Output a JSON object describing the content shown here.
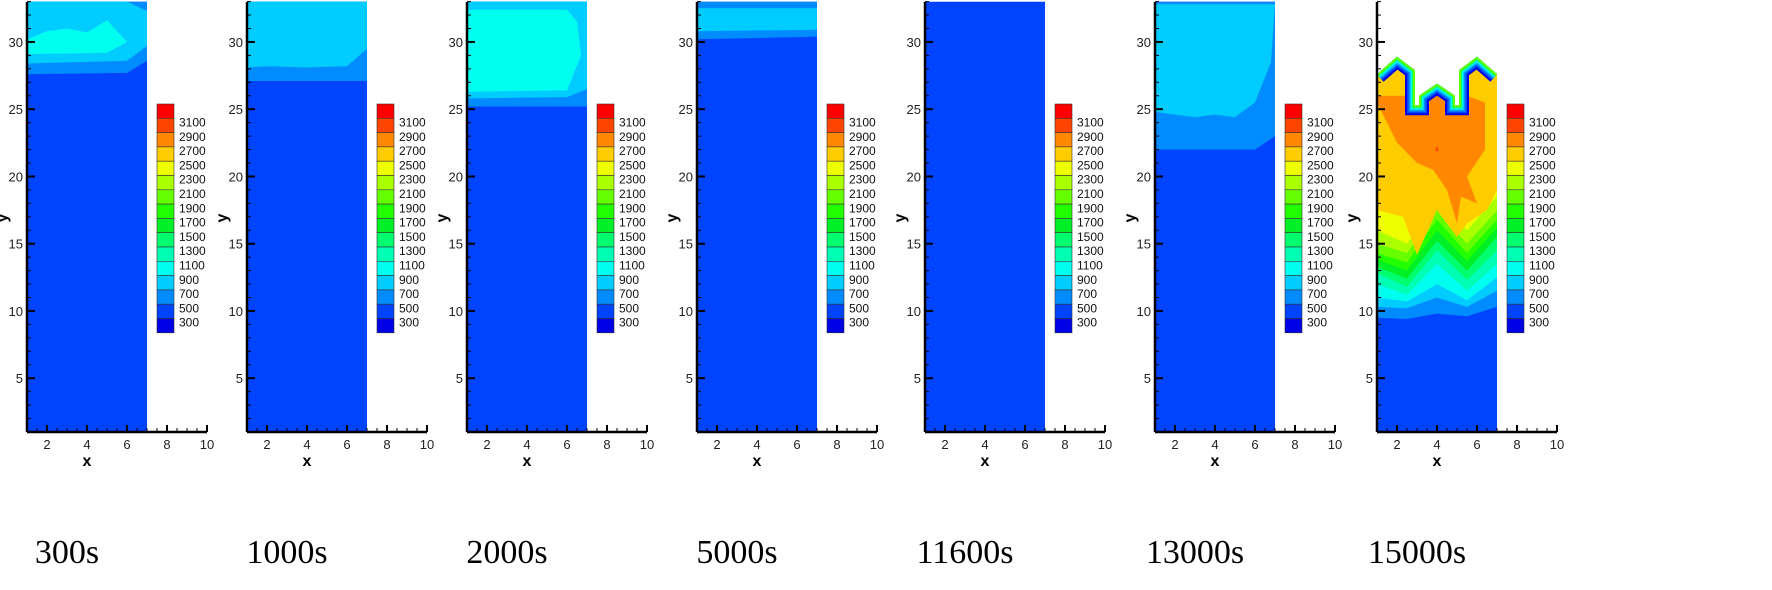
{
  "colorbar": {
    "levels": [
      300,
      500,
      700,
      900,
      1100,
      1300,
      1500,
      1700,
      1900,
      2100,
      2300,
      2500,
      2700,
      2900,
      3100
    ],
    "colors": [
      "#0000e6",
      "#0044ff",
      "#008cff",
      "#00ccff",
      "#00ffee",
      "#00ffb4",
      "#00ff6e",
      "#00f028",
      "#22ff00",
      "#66ff00",
      "#aaff00",
      "#eeff00",
      "#ffcc00",
      "#ff8800",
      "#ff4400",
      "#ff0000"
    ]
  },
  "chart_data": [
    {
      "type": "contour",
      "title": "300s",
      "xlabel": "x",
      "ylabel": "y",
      "xlim": [
        1,
        10
      ],
      "ylim": [
        1,
        33
      ],
      "xticks": [
        2,
        4,
        6,
        8,
        10
      ],
      "yticks": [
        5,
        10,
        15,
        20,
        25,
        30
      ],
      "domain": [
        [
          1,
          1
        ],
        [
          7,
          1
        ],
        [
          7,
          33
        ],
        [
          1,
          33
        ]
      ],
      "base_level": 500,
      "regions": [
        {
          "level": 700,
          "polygon": [
            [
              1,
              27.6
            ],
            [
              6,
              27.7
            ],
            [
              7,
              28.6
            ],
            [
              7,
              33
            ],
            [
              1,
              33
            ]
          ]
        },
        {
          "level": 900,
          "polygon": [
            [
              1,
              28.4
            ],
            [
              6,
              28.6
            ],
            [
              7,
              29.7
            ],
            [
              7,
              32.3
            ],
            [
              6,
              33
            ],
            [
              1,
              33
            ]
          ]
        },
        {
          "level": 1100,
          "polygon": [
            [
              1,
              30.2
            ],
            [
              2,
              30.8
            ],
            [
              3,
              31
            ],
            [
              4,
              30.7
            ],
            [
              5,
              31.6
            ],
            [
              6,
              30
            ],
            [
              5,
              29.2
            ],
            [
              1,
              29.1
            ]
          ]
        }
      ]
    },
    {
      "type": "contour",
      "title": "1000s",
      "xlabel": "x",
      "ylabel": "y",
      "xlim": [
        1,
        10
      ],
      "ylim": [
        1,
        33
      ],
      "xticks": [
        2,
        4,
        6,
        8,
        10
      ],
      "yticks": [
        5,
        10,
        15,
        20,
        25,
        30
      ],
      "domain": [
        [
          1,
          1
        ],
        [
          7,
          1
        ],
        [
          7,
          33
        ],
        [
          1,
          33
        ]
      ],
      "base_level": 500,
      "regions": [
        {
          "level": 700,
          "polygon": [
            [
              1,
              27.1
            ],
            [
              7,
              27.1
            ],
            [
              7,
              33
            ],
            [
              1,
              33
            ]
          ]
        },
        {
          "level": 900,
          "polygon": [
            [
              1,
              28.1
            ],
            [
              2,
              28.2
            ],
            [
              4,
              28.1
            ],
            [
              6,
              28.2
            ],
            [
              7,
              29.5
            ],
            [
              7,
              33
            ],
            [
              1,
              33
            ]
          ]
        }
      ]
    },
    {
      "type": "contour",
      "title": "2000s",
      "xlabel": "x",
      "ylabel": "y",
      "xlim": [
        1,
        10
      ],
      "ylim": [
        1,
        33
      ],
      "xticks": [
        2,
        4,
        6,
        8,
        10
      ],
      "yticks": [
        5,
        10,
        15,
        20,
        25,
        30
      ],
      "domain": [
        [
          1,
          1
        ],
        [
          7,
          1
        ],
        [
          7,
          33
        ],
        [
          1,
          33
        ]
      ],
      "base_level": 500,
      "regions": [
        {
          "level": 700,
          "polygon": [
            [
              1,
              25.2
            ],
            [
              7,
              25.2
            ],
            [
              7,
              33
            ],
            [
              1,
              33
            ]
          ]
        },
        {
          "level": 900,
          "polygon": [
            [
              1,
              25.8
            ],
            [
              6,
              25.9
            ],
            [
              7,
              26.5
            ],
            [
              7,
              33
            ],
            [
              1,
              33
            ]
          ]
        },
        {
          "level": 1100,
          "polygon": [
            [
              1,
              26.3
            ],
            [
              6,
              26.4
            ],
            [
              6.7,
              29
            ],
            [
              6.5,
              31.5
            ],
            [
              6,
              32.4
            ],
            [
              1,
              32.4
            ]
          ]
        }
      ]
    },
    {
      "type": "contour",
      "title": "5000s",
      "xlabel": "x",
      "ylabel": "y",
      "xlim": [
        1,
        10
      ],
      "ylim": [
        1,
        33
      ],
      "xticks": [
        2,
        4,
        6,
        8,
        10
      ],
      "yticks": [
        5,
        10,
        15,
        20,
        25,
        30
      ],
      "domain": [
        [
          1,
          1
        ],
        [
          7,
          1
        ],
        [
          7,
          33
        ],
        [
          1,
          33
        ]
      ],
      "base_level": 500,
      "regions": [
        {
          "level": 700,
          "polygon": [
            [
              1,
              30.2
            ],
            [
              7,
              30.4
            ],
            [
              7,
              33
            ],
            [
              1,
              33
            ]
          ]
        },
        {
          "level": 900,
          "polygon": [
            [
              1,
              30.8
            ],
            [
              7,
              30.9
            ],
            [
              7,
              32.5
            ],
            [
              1,
              32.5
            ]
          ]
        }
      ]
    },
    {
      "type": "contour",
      "title": "11600s",
      "xlabel": "x",
      "ylabel": "y",
      "xlim": [
        1,
        10
      ],
      "ylim": [
        1,
        33
      ],
      "xticks": [
        2,
        4,
        6,
        8,
        10
      ],
      "yticks": [
        5,
        10,
        15,
        20,
        25,
        30
      ],
      "domain": [
        [
          1,
          1
        ],
        [
          7,
          1
        ],
        [
          7,
          33
        ],
        [
          1,
          33
        ]
      ],
      "base_level": 500,
      "regions": []
    },
    {
      "type": "contour",
      "title": "13000s",
      "xlabel": "x",
      "ylabel": "y",
      "xlim": [
        1,
        10
      ],
      "ylim": [
        1,
        33
      ],
      "xticks": [
        2,
        4,
        6,
        8,
        10
      ],
      "yticks": [
        5,
        10,
        15,
        20,
        25,
        30
      ],
      "domain": [
        [
          1,
          1
        ],
        [
          7,
          1
        ],
        [
          7,
          33
        ],
        [
          1,
          33
        ]
      ],
      "base_level": 500,
      "regions": [
        {
          "level": 700,
          "polygon": [
            [
              1,
              22
            ],
            [
              6,
              22
            ],
            [
              7,
              23
            ],
            [
              7,
              33
            ],
            [
              1,
              33
            ]
          ]
        },
        {
          "level": 900,
          "polygon": [
            [
              1,
              24.8
            ],
            [
              2,
              24.6
            ],
            [
              3,
              24.4
            ],
            [
              4,
              24.6
            ],
            [
              5,
              24.4
            ],
            [
              6,
              25.5
            ],
            [
              6.8,
              28.5
            ],
            [
              7,
              32.8
            ],
            [
              1,
              32.8
            ]
          ]
        }
      ]
    },
    {
      "type": "contour",
      "title": "15000s",
      "xlabel": "x",
      "ylabel": "y",
      "xlim": [
        1,
        10
      ],
      "ylim": [
        1,
        33
      ],
      "xticks": [
        2,
        4,
        6,
        8,
        10
      ],
      "yticks": [
        5,
        10,
        15,
        20,
        25,
        30
      ],
      "domain": [
        [
          1,
          1
        ],
        [
          7,
          1
        ],
        [
          7,
          27.6
        ],
        [
          6,
          28.9
        ],
        [
          5.1,
          27.9
        ],
        [
          5.1,
          25.3
        ],
        [
          4.9,
          25.3
        ],
        [
          4.9,
          26
        ],
        [
          4,
          26.9
        ],
        [
          3.1,
          26
        ],
        [
          3.1,
          25.3
        ],
        [
          2.9,
          25.3
        ],
        [
          2.9,
          27.9
        ],
        [
          2,
          28.9
        ],
        [
          1,
          27.6
        ]
      ],
      "base_level": 500,
      "boundary_levels": [
        300,
        500,
        700,
        900,
        1100,
        1500,
        2100
      ],
      "regions": [
        {
          "level": 700,
          "polygon": [
            [
              1,
              9.5
            ],
            [
              2.5,
              9.4
            ],
            [
              4,
              9.8
            ],
            [
              5.5,
              9.6
            ],
            [
              7,
              10.3
            ],
            [
              7,
              33
            ],
            [
              1,
              33
            ]
          ]
        },
        {
          "level": 900,
          "polygon": [
            [
              1,
              10.3
            ],
            [
              2.5,
              10.2
            ],
            [
              4,
              11
            ],
            [
              5.5,
              10.3
            ],
            [
              7,
              11.5
            ],
            [
              7,
              33
            ],
            [
              1,
              33
            ]
          ]
        },
        {
          "level": 1100,
          "polygon": [
            [
              1,
              11
            ],
            [
              2.5,
              10.7
            ],
            [
              4,
              12
            ],
            [
              5.5,
              10.8
            ],
            [
              7,
              12.5
            ],
            [
              7,
              33
            ],
            [
              1,
              33
            ]
          ]
        },
        {
          "level": 1300,
          "polygon": [
            [
              1,
              12
            ],
            [
              2.5,
              11.2
            ],
            [
              4,
              13.5
            ],
            [
              5.5,
              11.5
            ],
            [
              7,
              13.5
            ],
            [
              7,
              33
            ],
            [
              1,
              33
            ]
          ]
        },
        {
          "level": 1500,
          "polygon": [
            [
              1,
              12.8
            ],
            [
              2.5,
              11.8
            ],
            [
              4,
              14.5
            ],
            [
              5.5,
              12.3
            ],
            [
              7,
              14.5
            ],
            [
              7,
              33
            ],
            [
              1,
              33
            ]
          ]
        },
        {
          "level": 1700,
          "polygon": [
            [
              1,
              13.3
            ],
            [
              2.5,
              12.4
            ],
            [
              4,
              15.2
            ],
            [
              5.5,
              13
            ],
            [
              7,
              15.5
            ],
            [
              7,
              33
            ],
            [
              1,
              33
            ]
          ]
        },
        {
          "level": 1900,
          "polygon": [
            [
              1,
              13.8
            ],
            [
              2.5,
              13
            ],
            [
              4,
              16
            ],
            [
              5.5,
              13.7
            ],
            [
              7,
              16.2
            ],
            [
              7,
              33
            ],
            [
              1,
              33
            ]
          ]
        },
        {
          "level": 2100,
          "polygon": [
            [
              1,
              14.3
            ],
            [
              2.5,
              13.6
            ],
            [
              4,
              16.8
            ],
            [
              5.5,
              14.3
            ],
            [
              7,
              16.8
            ],
            [
              7,
              33
            ],
            [
              1,
              33
            ]
          ]
        },
        {
          "level": 2300,
          "polygon": [
            [
              1,
              15
            ],
            [
              2.5,
              14.3
            ],
            [
              4,
              17.5
            ],
            [
              5.5,
              15
            ],
            [
              7,
              17.5
            ],
            [
              7,
              33
            ],
            [
              1,
              33
            ]
          ]
        },
        {
          "level": 2500,
          "polygon": [
            [
              1,
              16
            ],
            [
              2.5,
              15
            ],
            [
              4,
              18
            ],
            [
              5.5,
              16
            ],
            [
              7,
              18.5
            ],
            [
              7,
              33
            ],
            [
              1,
              33
            ]
          ]
        },
        {
          "level": 2700,
          "polygon": [
            [
              1,
              17.5
            ],
            [
              2.3,
              17
            ],
            [
              3,
              14.2
            ],
            [
              4,
              17.5
            ],
            [
              5,
              15.5
            ],
            [
              5.5,
              16.5
            ],
            [
              6.5,
              17.5
            ],
            [
              7,
              19
            ],
            [
              7,
              33
            ],
            [
              1,
              33
            ]
          ]
        },
        {
          "level": 2900,
          "polygon": [
            [
              1,
              25.5
            ],
            [
              2,
              22.5
            ],
            [
              3,
              21
            ],
            [
              3.8,
              20.5
            ],
            [
              4.5,
              19
            ],
            [
              5,
              16.5
            ],
            [
              5.2,
              18.5
            ],
            [
              6,
              18
            ],
            [
              5.5,
              20
            ],
            [
              6.4,
              22
            ],
            [
              6.4,
              25.5
            ],
            [
              5.5,
              26
            ],
            [
              3,
              26
            ],
            [
              1,
              26
            ]
          ]
        },
        {
          "level": 3100,
          "polygon": [
            [
              3.9,
              21.9
            ],
            [
              4.1,
              21.9
            ],
            [
              4,
              22.3
            ]
          ]
        }
      ]
    }
  ]
}
